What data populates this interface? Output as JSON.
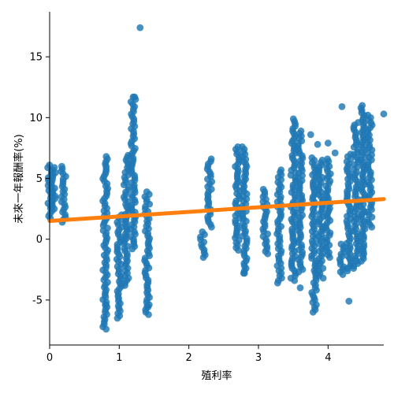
{
  "chart_data": {
    "type": "scatter",
    "xlabel": "殖利率",
    "ylabel": "未來一年報酬率(%)",
    "xlim": [
      0,
      4.8
    ],
    "ylim": [
      -8.7,
      18.7
    ],
    "x_ticks": [
      0,
      1,
      2,
      3,
      4
    ],
    "x_tick_labels": [
      "0",
      "1",
      "2",
      "3",
      "4"
    ],
    "y_ticks": [
      -5,
      0,
      5,
      10,
      15
    ],
    "y_tick_labels": [
      "-5",
      "0",
      "5",
      "10",
      "15"
    ],
    "grid": false,
    "legend": "none",
    "point_color": "#1f77b4",
    "fit_color": "#ff7f0e",
    "regression_line": {
      "x": [
        0,
        4.8
      ],
      "y": [
        1.5,
        3.3
      ]
    },
    "clusters": [
      {
        "x": 0.0,
        "y_range": [
          1.7,
          6.1
        ]
      },
      {
        "x": 0.05,
        "y_range": [
          2.5,
          5.9
        ]
      },
      {
        "x": 0.2,
        "y_range": [
          1.4,
          6.0
        ]
      },
      {
        "x": 0.8,
        "y_range": [
          -7.4,
          6.8
        ]
      },
      {
        "x": 1.0,
        "y_range": [
          -6.5,
          2.0
        ]
      },
      {
        "x": 1.1,
        "y_range": [
          -3.8,
          6.9
        ]
      },
      {
        "x": 1.2,
        "y_range": [
          -0.8,
          11.7
        ]
      },
      {
        "x": 1.4,
        "y_range": [
          -6.2,
          3.9
        ]
      },
      {
        "x": 2.2,
        "y_range": [
          -1.5,
          0.6
        ]
      },
      {
        "x": 2.3,
        "y_range": [
          1.0,
          6.6
        ]
      },
      {
        "x": 2.7,
        "y_range": [
          -0.9,
          7.6
        ]
      },
      {
        "x": 2.8,
        "y_range": [
          -2.8,
          7.6
        ]
      },
      {
        "x": 3.1,
        "y_range": [
          -1.2,
          4.1
        ]
      },
      {
        "x": 3.3,
        "y_range": [
          -3.6,
          5.7
        ]
      },
      {
        "x": 3.5,
        "y_range": [
          -3.4,
          9.9
        ]
      },
      {
        "x": 3.6,
        "y_range": [
          -2.7,
          8.9
        ]
      },
      {
        "x": 3.8,
        "y_range": [
          -6.0,
          6.7
        ]
      },
      {
        "x": 3.9,
        "y_range": [
          -3.2,
          6.5
        ]
      },
      {
        "x": 4.0,
        "y_range": [
          -1.5,
          6.6
        ]
      },
      {
        "x": 4.2,
        "y_range": [
          -2.9,
          -0.4
        ]
      },
      {
        "x": 4.3,
        "y_range": [
          -2.6,
          7.0
        ]
      },
      {
        "x": 4.4,
        "y_range": [
          -2.4,
          9.6
        ]
      },
      {
        "x": 4.5,
        "y_range": [
          -1.8,
          11.0
        ]
      },
      {
        "x": 4.6,
        "y_range": [
          1.0,
          10.2
        ]
      }
    ],
    "outliers": [
      {
        "x": 1.3,
        "y": 17.4
      },
      {
        "x": 1.2,
        "y": 11.7
      },
      {
        "x": 3.75,
        "y": 8.6
      },
      {
        "x": 3.85,
        "y": 7.8
      },
      {
        "x": 4.0,
        "y": 7.9
      },
      {
        "x": 4.1,
        "y": 7.1
      },
      {
        "x": 4.2,
        "y": 10.9
      },
      {
        "x": 4.8,
        "y": 10.3
      },
      {
        "x": 3.6,
        "y": -4.0
      },
      {
        "x": 2.8,
        "y": -2.8
      },
      {
        "x": 4.3,
        "y": -5.1
      },
      {
        "x": 1.4,
        "y": -5.5
      },
      {
        "x": 0.8,
        "y": -5.4
      }
    ]
  }
}
